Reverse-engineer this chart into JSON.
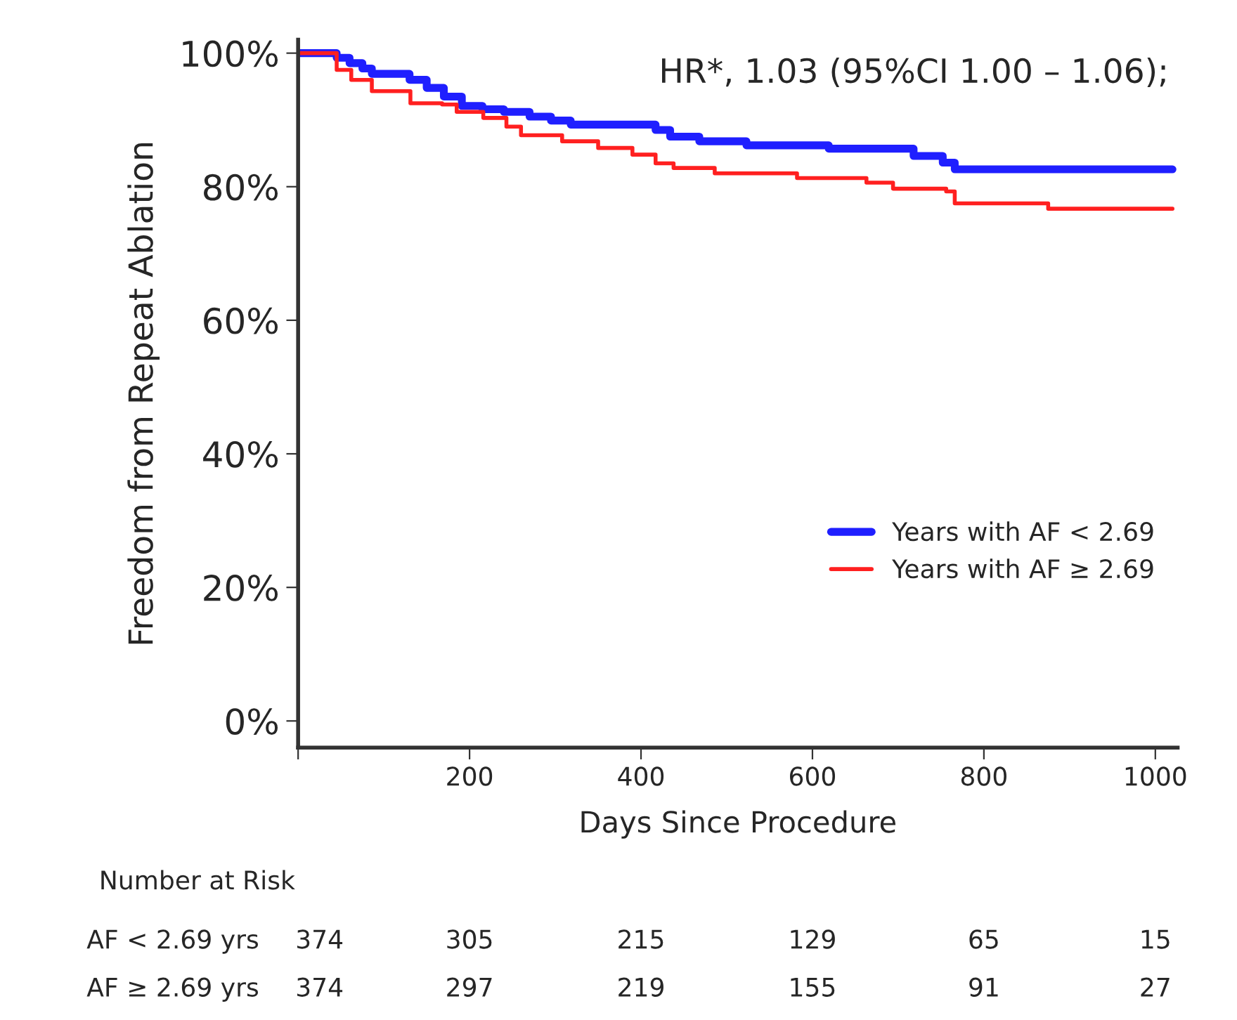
{
  "chart_data": {
    "type": "step",
    "title": "HR*, 1.03 (95%CI 1.00 – 1.06);",
    "xlabel": "Days Since Procedure",
    "ylabel": "Freedom from Repeat Ablation",
    "series": [
      {
        "name": "Years with AF < 2.69",
        "color": "#1f1fff",
        "x": [
          0,
          31,
          45,
          60,
          75,
          86,
          105,
          130,
          150,
          170,
          191,
          215,
          240,
          270,
          295,
          318,
          417,
          434,
          468,
          523,
          619,
          718,
          752,
          766,
          1020
        ],
        "values": [
          100,
          100,
          99.3,
          98.5,
          97.7,
          96.9,
          96.9,
          96.0,
          94.8,
          93.5,
          92.1,
          91.6,
          91.2,
          90.5,
          89.9,
          89.3,
          88.5,
          87.5,
          86.8,
          86.2,
          85.7,
          84.6,
          83.6,
          82.6,
          82.6
        ]
      },
      {
        "name": "Years with AF ≥ 2.69",
        "color": "#ff2020",
        "x": [
          0,
          28,
          45,
          62,
          86,
          131,
          168,
          185,
          216,
          243,
          260,
          308,
          350,
          390,
          417,
          438,
          486,
          582,
          663,
          694,
          756,
          766,
          875,
          1020
        ],
        "values": [
          100,
          100,
          97.5,
          96.0,
          94.3,
          92.5,
          92.3,
          91.2,
          90.3,
          89.0,
          87.7,
          86.8,
          85.8,
          84.8,
          83.5,
          82.8,
          82.0,
          81.3,
          80.6,
          79.7,
          79.3,
          77.5,
          76.7,
          76.7
        ]
      }
    ],
    "xlim": [
      0,
      1026
    ],
    "ylim": [
      -4,
      102
    ],
    "xticks": [
      {
        "value": 0,
        "label": null
      },
      200,
      400,
      600,
      800,
      1000
    ],
    "yticks": [
      {
        "value": 0,
        "label": "0%"
      },
      {
        "value": 20,
        "label": "20%"
      },
      {
        "value": 40,
        "label": "40%"
      },
      {
        "value": 60,
        "label": "60%"
      },
      {
        "value": 80,
        "label": "80%"
      },
      {
        "value": 100,
        "label": "100%"
      }
    ],
    "grid": false,
    "legend": "lower right",
    "line_style": "solid",
    "annotations": [
      "Number at Risk",
      "AF < 2.69 yrs",
      "374",
      "305",
      "215",
      "129",
      "65",
      "15",
      "AF ≥ 2.69 yrs",
      "374",
      "297",
      "219",
      "155",
      "91",
      "27"
    ]
  }
}
